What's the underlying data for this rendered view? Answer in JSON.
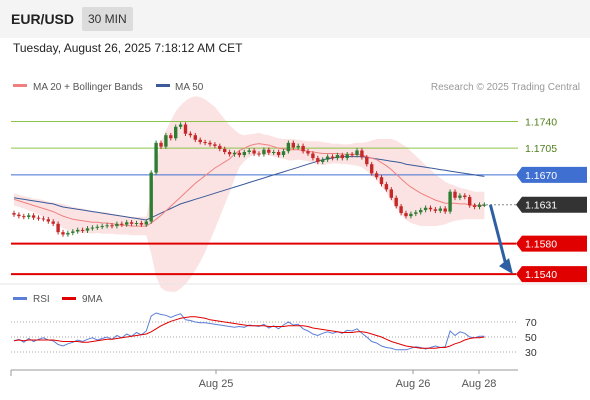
{
  "header": {
    "symbol": "EUR/USD",
    "timeframe": "30 MIN",
    "timestamp": "Tuesday, August 26, 2025 7:18:12 AM CET"
  },
  "legend": {
    "ma20_label": "MA 20 + Bollinger Bands",
    "ma50_label": "MA 50",
    "credit": "Research © 2025 Trading Central",
    "rsi_label": "RSI",
    "ma9_label": "9MA"
  },
  "colors": {
    "ma20": "#f08080",
    "ma50": "#3a5a9a",
    "band": "#fadada",
    "up": "#2e7d32",
    "down": "#c62828",
    "resistance": "#8bc34a",
    "pivot": "#3f6fd1",
    "support": "#e00000",
    "arrow": "#2e5fa3",
    "rsi": "#5b7fd6",
    "rsi_ma": "#e00000"
  },
  "chart_data": [
    {
      "type": "candlestick",
      "x_labels": [
        "Aug 25",
        "Aug 26",
        "Aug 28"
      ],
      "ylim": [
        1.1535,
        1.1755
      ],
      "levels": [
        {
          "value": 1.174,
          "label": "1.1740",
          "kind": "resistance"
        },
        {
          "value": 1.1705,
          "label": "1.1705",
          "kind": "resistance"
        },
        {
          "value": 1.167,
          "label": "1.1670",
          "kind": "pivot"
        },
        {
          "value": 1.1631,
          "label": "1.1631",
          "kind": "last"
        },
        {
          "value": 1.158,
          "label": "1.1580",
          "kind": "support"
        },
        {
          "value": 1.154,
          "label": "1.1540",
          "kind": "support"
        }
      ],
      "closes": [
        1.1618,
        1.1616,
        1.1615,
        1.1617,
        1.1614,
        1.1613,
        1.1612,
        1.1609,
        1.1606,
        1.1595,
        1.1592,
        1.1594,
        1.1596,
        1.1598,
        1.1597,
        1.16,
        1.1601,
        1.1602,
        1.1603,
        1.1604,
        1.1603,
        1.1606,
        1.1605,
        1.1608,
        1.1606,
        1.1607,
        1.1605,
        1.1609,
        1.1673,
        1.1712,
        1.1707,
        1.1722,
        1.1718,
        1.1733,
        1.1736,
        1.1724,
        1.1722,
        1.1716,
        1.1713,
        1.1712,
        1.171,
        1.1708,
        1.1704,
        1.17,
        1.1697,
        1.1699,
        1.1696,
        1.17,
        1.1702,
        1.1698,
        1.1697,
        1.1703,
        1.1699,
        1.17,
        1.1696,
        1.1701,
        1.1712,
        1.1706,
        1.1708,
        1.1701,
        1.1698,
        1.1692,
        1.1687,
        1.169,
        1.1694,
        1.1692,
        1.1696,
        1.1692,
        1.1697,
        1.1696,
        1.1702,
        1.1693,
        1.1684,
        1.1672,
        1.1667,
        1.1658,
        1.1651,
        1.164,
        1.1629,
        1.162,
        1.1616,
        1.1619,
        1.1621,
        1.1624,
        1.1627,
        1.1625,
        1.1623,
        1.1626,
        1.1622,
        1.1648,
        1.164,
        1.1643,
        1.1641,
        1.163,
        1.1628,
        1.1631,
        1.1631
      ],
      "ma20": [
        1.1638,
        1.1636,
        1.1634,
        1.1632,
        1.163,
        1.1628,
        1.1626,
        1.1624,
        1.1622,
        1.1619,
        1.1616,
        1.1614,
        1.1612,
        1.1611,
        1.161,
        1.1609,
        1.1608,
        1.1608,
        1.1607,
        1.1607,
        1.1606,
        1.1605,
        1.1604,
        1.1604,
        1.1603,
        1.1603,
        1.1603,
        1.1603,
        1.1607,
        1.1612,
        1.1617,
        1.1623,
        1.1629,
        1.1635,
        1.1641,
        1.1647,
        1.1653,
        1.1659,
        1.1664,
        1.1669,
        1.1674,
        1.1679,
        1.1683,
        1.1687,
        1.1691,
        1.1697,
        1.1702,
        1.1705,
        1.1708,
        1.171,
        1.1711,
        1.171,
        1.1709,
        1.1707,
        1.1705,
        1.1704,
        1.1703,
        1.1703,
        1.1703,
        1.1702,
        1.1701,
        1.17,
        1.1699,
        1.1698,
        1.1698,
        1.1698,
        1.1698,
        1.1697,
        1.1697,
        1.1697,
        1.1697,
        1.1696,
        1.1694,
        1.1692,
        1.169,
        1.1686,
        1.1682,
        1.1677,
        1.1671,
        1.1665,
        1.1659,
        1.1654,
        1.165,
        1.1646,
        1.1643,
        1.164,
        1.1637,
        1.1635,
        1.1633,
        1.1633,
        1.1633,
        1.1632,
        1.1632,
        1.1631,
        1.163,
        1.163,
        1.163
      ],
      "bb_width": [
        0.0008,
        0.0008,
        0.0008,
        0.0009,
        0.0009,
        0.001,
        0.0011,
        0.0011,
        0.0012,
        0.0014,
        0.0016,
        0.0016,
        0.0016,
        0.0016,
        0.0016,
        0.0015,
        0.0015,
        0.0014,
        0.0014,
        0.0014,
        0.0013,
        0.0013,
        0.0012,
        0.0012,
        0.0012,
        0.0012,
        0.0012,
        0.0012,
        0.004,
        0.0075,
        0.0095,
        0.0105,
        0.0112,
        0.0118,
        0.012,
        0.012,
        0.0118,
        0.0114,
        0.0108,
        0.01,
        0.009,
        0.008,
        0.0068,
        0.0056,
        0.0044,
        0.0032,
        0.0022,
        0.0017,
        0.0015,
        0.0014,
        0.0014,
        0.0013,
        0.0013,
        0.0013,
        0.0013,
        0.0013,
        0.0014,
        0.0014,
        0.0013,
        0.0013,
        0.0013,
        0.0014,
        0.0015,
        0.0015,
        0.0014,
        0.0013,
        0.0013,
        0.0013,
        0.0013,
        0.0014,
        0.0015,
        0.0016,
        0.0019,
        0.0023,
        0.0027,
        0.0031,
        0.0035,
        0.004,
        0.0044,
        0.0046,
        0.0048,
        0.0047,
        0.0045,
        0.0043,
        0.004,
        0.0037,
        0.0034,
        0.0031,
        0.0028,
        0.0025,
        0.0023,
        0.0021,
        0.002,
        0.0019,
        0.0018,
        0.0018,
        0.0018
      ],
      "ma50": [
        1.164,
        1.1639,
        1.1638,
        1.1637,
        1.1636,
        1.1635,
        1.1634,
        1.1633,
        1.1632,
        1.163,
        1.1628,
        1.1627,
        1.1626,
        1.1625,
        1.1624,
        1.1623,
        1.1622,
        1.1621,
        1.162,
        1.1619,
        1.1618,
        1.1617,
        1.1616,
        1.1615,
        1.1614,
        1.1613,
        1.1612,
        1.1611,
        1.1614,
        1.1617,
        1.162,
        1.1623,
        1.1626,
        1.1629,
        1.1632,
        1.1634,
        1.1636,
        1.1638,
        1.164,
        1.1642,
        1.1644,
        1.1646,
        1.1648,
        1.165,
        1.1652,
        1.1654,
        1.1656,
        1.1658,
        1.166,
        1.1662,
        1.1664,
        1.1666,
        1.1668,
        1.167,
        1.1672,
        1.1674,
        1.1676,
        1.1678,
        1.168,
        1.1682,
        1.1684,
        1.1686,
        1.1688,
        1.169,
        1.1691,
        1.1692,
        1.1693,
        1.1694,
        1.1694,
        1.1694,
        1.1694,
        1.1694,
        1.1693,
        1.1692,
        1.1691,
        1.169,
        1.1689,
        1.1688,
        1.1687,
        1.1686,
        1.1684,
        1.1683,
        1.1682,
        1.1681,
        1.168,
        1.1679,
        1.1678,
        1.1677,
        1.1676,
        1.1675,
        1.1674,
        1.1673,
        1.1672,
        1.1671,
        1.167,
        1.1669,
        1.1668
      ],
      "forecast": {
        "from": 1.1631,
        "to": 1.154
      }
    },
    {
      "type": "line",
      "title": "RSI",
      "y_ticks": [
        70,
        50,
        30
      ],
      "ylim": [
        10,
        90
      ],
      "series": [
        {
          "name": "RSI",
          "values": [
            45,
            47,
            43,
            48,
            44,
            47,
            49,
            46,
            45,
            40,
            38,
            41,
            43,
            46,
            44,
            47,
            49,
            46,
            48,
            50,
            47,
            52,
            49,
            54,
            51,
            56,
            53,
            58,
            78,
            82,
            80,
            79,
            76,
            79,
            81,
            73,
            72,
            70,
            69,
            69,
            68,
            67,
            66,
            65,
            64,
            63,
            64,
            63,
            66,
            65,
            64,
            67,
            62,
            65,
            61,
            66,
            70,
            66,
            67,
            61,
            58,
            54,
            52,
            55,
            57,
            55,
            57,
            55,
            59,
            58,
            61,
            55,
            50,
            44,
            42,
            38,
            36,
            35,
            33,
            33,
            33,
            35,
            37,
            36,
            34,
            36,
            38,
            36,
            37,
            58,
            52,
            57,
            55,
            50,
            49,
            51,
            51
          ]
        },
        {
          "name": "9MA",
          "values": [
            45,
            46,
            45,
            46,
            46,
            46,
            46,
            46,
            46,
            45,
            44,
            44,
            44,
            44,
            43,
            43,
            44,
            45,
            46,
            47,
            47,
            48,
            49,
            50,
            51,
            52,
            53,
            54,
            57,
            61,
            65,
            68,
            71,
            73,
            75,
            76,
            77,
            77,
            76,
            75,
            73,
            72,
            71,
            70,
            69,
            68,
            67,
            66,
            65,
            65,
            65,
            65,
            64,
            64,
            64,
            64,
            65,
            65,
            65,
            65,
            64,
            62,
            61,
            60,
            59,
            58,
            57,
            56,
            56,
            56,
            57,
            57,
            56,
            54,
            52,
            50,
            47,
            44,
            42,
            40,
            38,
            37,
            36,
            35,
            35,
            35,
            35,
            36,
            36,
            38,
            41,
            43,
            46,
            48,
            49,
            49,
            50
          ]
        }
      ]
    }
  ]
}
